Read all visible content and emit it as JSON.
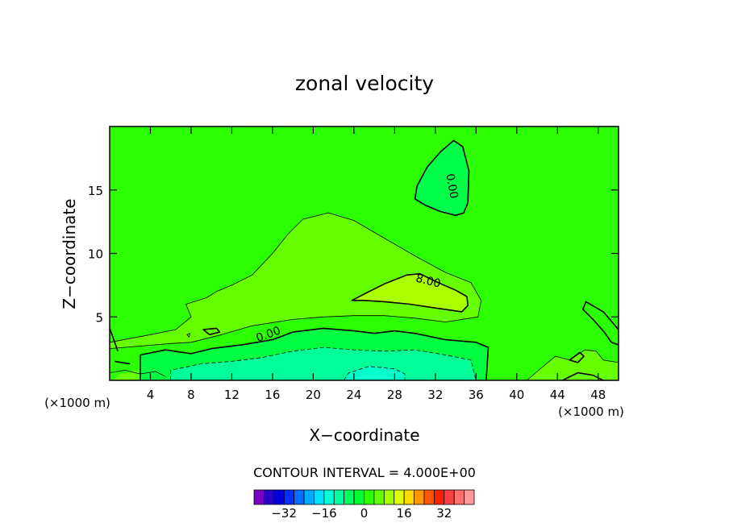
{
  "chart_data": {
    "type": "contour",
    "title": "zonal velocity",
    "xlabel": "X−coordinate",
    "ylabel": "Z−coordinate",
    "x_multiplier_label": "(×1000 m)",
    "y_multiplier_label": "(×1000 m)",
    "xlim": [
      0,
      50
    ],
    "ylim": [
      0,
      20
    ],
    "xticks": [
      4,
      8,
      12,
      16,
      20,
      24,
      28,
      32,
      36,
      40,
      44,
      48
    ],
    "yticks": [
      5,
      10,
      15
    ],
    "contour_interval_label": "CONTOUR INTERVAL = 4.000E+00",
    "contour_labels": [
      {
        "text": "0.00",
        "x": 33.6,
        "y": 15.3,
        "rotate": 80
      },
      {
        "text": "8.00",
        "x": 31.3,
        "y": 7.8,
        "rotate": 14
      },
      {
        "text": "0.00",
        "x": 15.6,
        "y": 3.6,
        "rotate": -20
      }
    ],
    "background_level_color": "#2bff00",
    "regions": [
      {
        "name": "positive-lobe-4",
        "fill": "#66ff00",
        "points": [
          [
            0,
            3.0
          ],
          [
            4,
            3.6
          ],
          [
            6.5,
            4.0
          ],
          [
            8,
            5.0
          ],
          [
            7.5,
            6.0
          ],
          [
            9.5,
            6.5
          ],
          [
            10.5,
            7.0
          ],
          [
            12,
            7.5
          ],
          [
            14,
            8.3
          ],
          [
            16,
            10.0
          ],
          [
            17.5,
            11.5
          ],
          [
            19,
            12.7
          ],
          [
            21.5,
            13.2
          ],
          [
            24,
            12.6
          ],
          [
            27,
            11.2
          ],
          [
            30,
            9.8
          ],
          [
            33,
            8.5
          ],
          [
            35.5,
            7.7
          ],
          [
            36.5,
            6.3
          ],
          [
            36.2,
            5.0
          ],
          [
            33,
            4.6
          ],
          [
            30,
            4.9
          ],
          [
            27,
            5.1
          ],
          [
            24,
            5.1
          ],
          [
            21,
            5.0
          ],
          [
            18,
            4.8
          ],
          [
            14,
            4.3
          ],
          [
            11,
            3.6
          ],
          [
            8,
            3.0
          ],
          [
            6,
            2.9
          ],
          [
            3,
            2.7
          ],
          [
            0,
            2.5
          ]
        ]
      },
      {
        "name": "positive-lobe-8",
        "fill": "#aaff00",
        "points": [
          [
            23.8,
            6.3
          ],
          [
            25,
            6.8
          ],
          [
            27,
            7.6
          ],
          [
            29.2,
            8.3
          ],
          [
            30.5,
            8.4
          ],
          [
            32,
            7.8
          ],
          [
            34,
            7.1
          ],
          [
            35.1,
            6.6
          ],
          [
            35.2,
            5.9
          ],
          [
            34.6,
            5.4
          ],
          [
            32,
            5.7
          ],
          [
            29.5,
            6.0
          ],
          [
            27,
            6.2
          ],
          [
            25,
            6.3
          ]
        ]
      },
      {
        "name": "negative-cell-upper",
        "fill": "#00ff4a",
        "points": [
          [
            30.2,
            15.3
          ],
          [
            31.2,
            16.8
          ],
          [
            32.5,
            18.0
          ],
          [
            33.8,
            18.9
          ],
          [
            34.7,
            18.4
          ],
          [
            35.3,
            16.5
          ],
          [
            35.2,
            14.0
          ],
          [
            34.8,
            13.2
          ],
          [
            34.0,
            13.0
          ],
          [
            32.5,
            13.3
          ],
          [
            31.0,
            13.8
          ],
          [
            30.0,
            14.3
          ]
        ]
      },
      {
        "name": "negative-band",
        "fill": "#00ff40",
        "points": [
          [
            3,
            0
          ],
          [
            3,
            2.0
          ],
          [
            5.5,
            2.4
          ],
          [
            8,
            2.1
          ],
          [
            10,
            2.5
          ],
          [
            13,
            2.8
          ],
          [
            16,
            3.2
          ],
          [
            18,
            3.8
          ],
          [
            21,
            4.1
          ],
          [
            24,
            3.9
          ],
          [
            26,
            3.7
          ],
          [
            28,
            3.9
          ],
          [
            30,
            3.7
          ],
          [
            33,
            3.2
          ],
          [
            36,
            3.0
          ],
          [
            37.2,
            2.6
          ],
          [
            37,
            0
          ]
        ]
      },
      {
        "name": "negative-band-inner",
        "fill": "#00ff99",
        "points": [
          [
            6,
            0
          ],
          [
            6,
            0.8
          ],
          [
            9,
            1.3
          ],
          [
            12,
            1.5
          ],
          [
            15,
            1.8
          ],
          [
            18,
            2.3
          ],
          [
            21,
            2.6
          ],
          [
            24,
            2.4
          ],
          [
            27,
            2.3
          ],
          [
            30,
            2.4
          ],
          [
            33,
            2.0
          ],
          [
            35.5,
            1.6
          ],
          [
            36,
            0
          ]
        ]
      },
      {
        "name": "negative-core",
        "fill": "#00ffcc",
        "points": [
          [
            23,
            0
          ],
          [
            23.5,
            0.6
          ],
          [
            25.5,
            1.1
          ],
          [
            28,
            0.9
          ],
          [
            29,
            0.5
          ],
          [
            29,
            0
          ]
        ]
      },
      {
        "name": "surface-lobe-a",
        "fill": "#66ff00",
        "points": [
          [
            41,
            0
          ],
          [
            42,
            0.7
          ],
          [
            43.8,
            1.9
          ],
          [
            45.2,
            1.6
          ],
          [
            46.7,
            2.4
          ],
          [
            47.8,
            2.3
          ],
          [
            48.5,
            1.6
          ],
          [
            50,
            1.4
          ],
          [
            50,
            0
          ]
        ]
      },
      {
        "name": "surface-lobe-b",
        "fill": "#66ff00",
        "points": [
          [
            0.3,
            0
          ],
          [
            1.0,
            0.5
          ],
          [
            2.8,
            0.8
          ],
          [
            3.2,
            0
          ]
        ]
      }
    ],
    "contours": [
      {
        "name": "contour-zero-upper",
        "style": "solid",
        "width": 1.6,
        "closed": true,
        "points": [
          [
            30.2,
            15.3
          ],
          [
            31.2,
            16.8
          ],
          [
            32.5,
            18.0
          ],
          [
            33.8,
            18.9
          ],
          [
            34.7,
            18.4
          ],
          [
            35.3,
            16.5
          ],
          [
            35.2,
            14.0
          ],
          [
            34.8,
            13.2
          ],
          [
            34.0,
            13.0
          ],
          [
            32.5,
            13.3
          ],
          [
            31.0,
            13.8
          ],
          [
            30.0,
            14.3
          ]
        ]
      },
      {
        "name": "contour-eight",
        "style": "solid",
        "width": 1.6,
        "closed": true,
        "points": [
          [
            23.8,
            6.3
          ],
          [
            25,
            6.8
          ],
          [
            27,
            7.6
          ],
          [
            29.2,
            8.3
          ],
          [
            30.5,
            8.4
          ],
          [
            32,
            7.8
          ],
          [
            34,
            7.1
          ],
          [
            35.1,
            6.6
          ],
          [
            35.2,
            5.9
          ],
          [
            34.6,
            5.4
          ],
          [
            32,
            5.7
          ],
          [
            29.5,
            6.0
          ],
          [
            27,
            6.2
          ],
          [
            25,
            6.3
          ]
        ]
      },
      {
        "name": "contour-four",
        "style": "solid",
        "width": 0.8,
        "closed": false,
        "points": [
          [
            0,
            3.0
          ],
          [
            4,
            3.6
          ],
          [
            6.5,
            4.0
          ],
          [
            8,
            5.0
          ],
          [
            7.5,
            6.0
          ],
          [
            9.5,
            6.5
          ],
          [
            10.5,
            7.0
          ],
          [
            12,
            7.5
          ],
          [
            14,
            8.3
          ],
          [
            16,
            10.0
          ],
          [
            17.5,
            11.5
          ],
          [
            19,
            12.7
          ],
          [
            21.5,
            13.2
          ],
          [
            24,
            12.6
          ],
          [
            27,
            11.2
          ],
          [
            30,
            9.8
          ],
          [
            33,
            8.5
          ],
          [
            35.5,
            7.7
          ],
          [
            36.5,
            6.3
          ],
          [
            36.2,
            5.0
          ],
          [
            33,
            4.6
          ],
          [
            30,
            4.9
          ],
          [
            27,
            5.1
          ],
          [
            24,
            5.1
          ],
          [
            21,
            5.0
          ],
          [
            18,
            4.8
          ],
          [
            14,
            4.3
          ],
          [
            11,
            3.6
          ],
          [
            8,
            3.0
          ],
          [
            6,
            2.9
          ],
          [
            3,
            2.7
          ],
          [
            0,
            2.5
          ]
        ]
      },
      {
        "name": "contour-zero-lower",
        "style": "solid",
        "width": 1.6,
        "closed": false,
        "points": [
          [
            3,
            0
          ],
          [
            3,
            2.0
          ],
          [
            5.5,
            2.4
          ],
          [
            8,
            2.1
          ],
          [
            10,
            2.5
          ],
          [
            13,
            2.8
          ],
          [
            16,
            3.2
          ],
          [
            18,
            3.8
          ],
          [
            21,
            4.1
          ],
          [
            24,
            3.9
          ],
          [
            26,
            3.7
          ],
          [
            28,
            3.9
          ],
          [
            30,
            3.7
          ],
          [
            33,
            3.2
          ],
          [
            36,
            3.0
          ],
          [
            37.2,
            2.6
          ],
          [
            37,
            0
          ]
        ]
      },
      {
        "name": "contour-neg4",
        "style": "dashed",
        "width": 0.8,
        "closed": false,
        "points": [
          [
            6,
            0
          ],
          [
            6,
            0.8
          ],
          [
            9,
            1.3
          ],
          [
            12,
            1.5
          ],
          [
            15,
            1.8
          ],
          [
            18,
            2.3
          ],
          [
            21,
            2.6
          ],
          [
            24,
            2.4
          ],
          [
            27,
            2.3
          ],
          [
            30,
            2.4
          ],
          [
            33,
            2.0
          ],
          [
            35.5,
            1.6
          ],
          [
            36,
            0
          ]
        ]
      },
      {
        "name": "contour-neg8",
        "style": "dashed",
        "width": 0.8,
        "closed": false,
        "points": [
          [
            23,
            0
          ],
          [
            23.5,
            0.6
          ],
          [
            25.5,
            1.1
          ],
          [
            28,
            0.9
          ],
          [
            29,
            0.5
          ],
          [
            29,
            0
          ]
        ]
      },
      {
        "name": "contour-left-edge",
        "style": "solid",
        "width": 1.6,
        "closed": false,
        "points": [
          [
            0,
            4.1
          ],
          [
            0.5,
            3.0
          ],
          [
            0.8,
            2.3
          ]
        ]
      },
      {
        "name": "contour-right-a",
        "style": "solid",
        "width": 1.6,
        "closed": false,
        "points": [
          [
            50,
            4.0
          ],
          [
            48.5,
            5.4
          ],
          [
            46.8,
            6.2
          ],
          [
            46.5,
            5.6
          ],
          [
            47.5,
            4.8
          ],
          [
            48.6,
            3.8
          ],
          [
            49.3,
            3.0
          ],
          [
            50,
            2.8
          ]
        ]
      },
      {
        "name": "contour-right-b",
        "style": "solid",
        "width": 1.6,
        "closed": true,
        "points": [
          [
            45.2,
            1.6
          ],
          [
            46.2,
            2.2
          ],
          [
            46.6,
            1.9
          ],
          [
            46.0,
            1.4
          ]
        ]
      },
      {
        "name": "contour-right-c",
        "style": "solid",
        "width": 0.8,
        "closed": false,
        "points": [
          [
            41,
            0
          ],
          [
            42,
            0.7
          ],
          [
            43.8,
            1.9
          ],
          [
            45.2,
            1.6
          ],
          [
            46.7,
            2.4
          ],
          [
            47.8,
            2.3
          ],
          [
            48.5,
            1.6
          ],
          [
            50,
            1.4
          ]
        ]
      },
      {
        "name": "contour-right-d",
        "style": "solid",
        "width": 1.6,
        "closed": false,
        "points": [
          [
            44.5,
            0
          ],
          [
            46,
            0.6
          ],
          [
            47.5,
            0.4
          ],
          [
            48.5,
            0
          ]
        ]
      },
      {
        "name": "contour-small-left",
        "style": "solid",
        "width": 1.6,
        "closed": true,
        "points": [
          [
            9.2,
            4.0
          ],
          [
            10.5,
            4.1
          ],
          [
            10.8,
            3.8
          ],
          [
            9.8,
            3.6
          ]
        ]
      },
      {
        "name": "contour-small-left-b",
        "style": "solid",
        "width": 0.8,
        "closed": true,
        "points": [
          [
            7.6,
            3.6
          ],
          [
            7.9,
            3.7
          ],
          [
            7.8,
            3.4
          ]
        ]
      },
      {
        "name": "contour-lower-left",
        "style": "solid",
        "width": 1.6,
        "closed": false,
        "points": [
          [
            0.5,
            1.5
          ],
          [
            1.2,
            1.4
          ],
          [
            2.0,
            1.3
          ]
        ]
      },
      {
        "name": "contour-surface-left",
        "style": "solid",
        "width": 0.8,
        "closed": false,
        "points": [
          [
            0,
            0.6
          ],
          [
            1.5,
            0.8
          ],
          [
            3,
            0.5
          ],
          [
            4.5,
            0.7
          ],
          [
            5.5,
            0.3
          ]
        ]
      }
    ],
    "colorbar": {
      "colors": [
        "#7a00c8",
        "#2a00c8",
        "#0000e0",
        "#0030ff",
        "#0070ff",
        "#00a8ff",
        "#00e0ff",
        "#00ffd8",
        "#00ffa0",
        "#00ff60",
        "#00ff30",
        "#30ff00",
        "#66ff00",
        "#a8ff00",
        "#e0ff00",
        "#ffd800",
        "#ff9800",
        "#ff5800",
        "#ff2000",
        "#ff4040",
        "#ff7070",
        "#ff9999"
      ],
      "tick_labels": [
        "−32",
        "−16",
        "0",
        "16",
        "32"
      ],
      "tick_values": [
        -32,
        -16,
        0,
        16,
        32
      ],
      "vmin": -44,
      "vmax": 44
    }
  }
}
